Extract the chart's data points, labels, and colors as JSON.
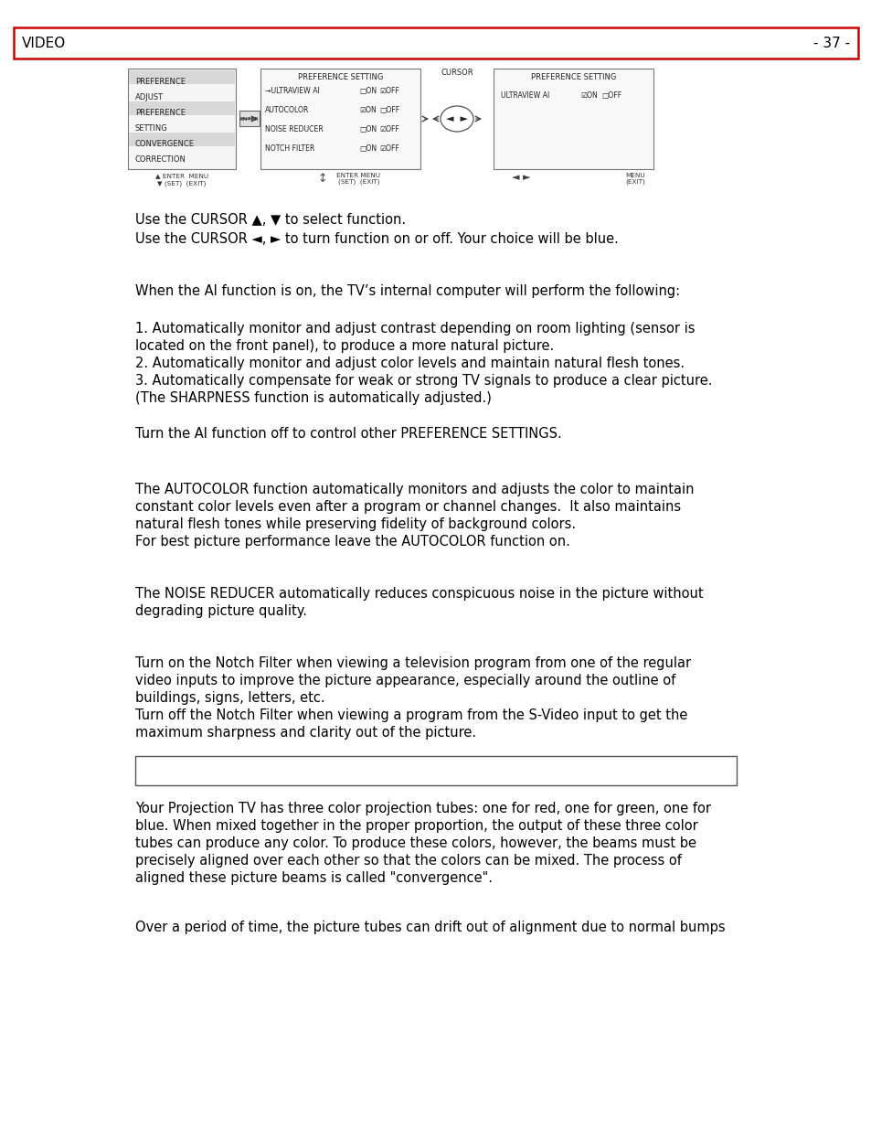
{
  "header_left": "VIDEO",
  "header_right": "- 37 -",
  "header_border_color": "#cc0000",
  "background_color": "#ffffff",
  "text_color": "#000000",
  "body_font_size": 10.5,
  "line1": "Use the CURSOR ▲, ▼ to select function.",
  "line2": "Use the CURSOR ◄, ► to turn function on or off. Your choice will be blue.",
  "para1": "When the AI function is on, the TV’s internal computer will perform the following:",
  "para2a": "1. Automatically monitor and adjust contrast depending on room lighting (sensor is\nlocated on the front panel), to produce a more natural picture.",
  "para2b": "2. Automatically monitor and adjust color levels and maintain natural flesh tones.",
  "para2c": "3. Automatically compensate for weak or strong TV signals to produce a clear picture.\n(The SHARPNESS function is automatically adjusted.)",
  "para3": "Turn the AI function off to control other PREFERENCE SETTINGS.",
  "para4": "The AUTOCOLOR function automatically monitors and adjusts the color to maintain\nconstant color levels even after a program or channel changes.  It also maintains\nnatural flesh tones while preserving fidelity of background colors.\nFor best picture performance leave the AUTOCOLOR function on.",
  "para5": "The NOISE REDUCER automatically reduces conspicuous noise in the picture without\ndegrading picture quality.",
  "para6": "Turn on the Notch Filter when viewing a television program from one of the regular\nvideo inputs to improve the picture appearance, especially around the outline of\nbuildings, signs, letters, etc.\nTurn off the Notch Filter when viewing a program from the S-Video input to get the\nmaximum sharpness and clarity out of the picture.",
  "para7": "Your Projection TV has three color projection tubes: one for red, one for green, one for\nblue. When mixed together in the proper proportion, the output of these three color\ntubes can produce any color. To produce these colors, however, the beams must be\nprecisely aligned over each other so that the colors can be mixed. The process of\naligned these picture beams is called \"convergence\".",
  "para8": "Over a period of time, the picture tubes can drift out of alignment due to normal bumps"
}
